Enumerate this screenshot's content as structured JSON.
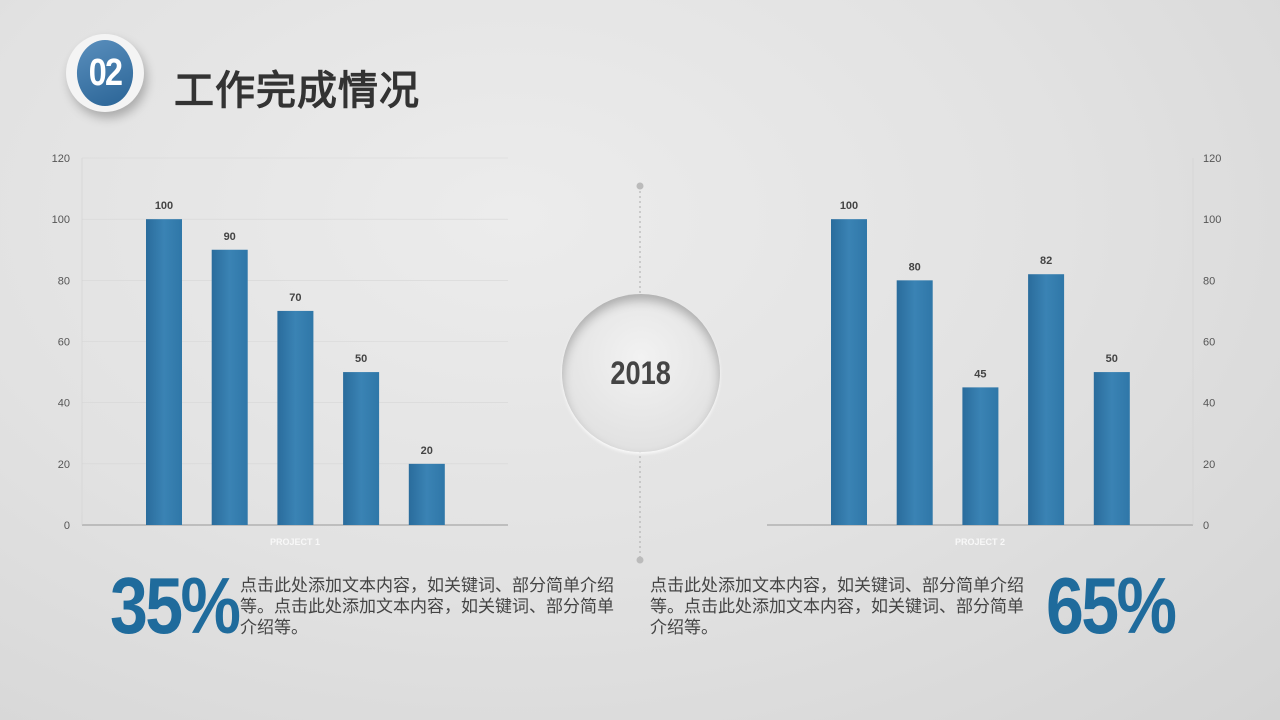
{
  "header": {
    "badge": "02",
    "title": "工作完成情况"
  },
  "year": "2018",
  "colors": {
    "bar": "#2f78a8",
    "bar_light": "#4b8fbd",
    "accent": "#1f6b9c"
  },
  "chart_data": [
    {
      "type": "bar",
      "categories": [
        "",
        "",
        "",
        "",
        ""
      ],
      "values": [
        100,
        90,
        70,
        50,
        20
      ],
      "xlabel": "PROJECT 1",
      "ylim": [
        0,
        120
      ],
      "yticks": [
        "0",
        "20",
        "40",
        "60",
        "80",
        "100",
        "120"
      ],
      "axis_side": "left",
      "grid": true
    },
    {
      "type": "bar",
      "categories": [
        "",
        "",
        "",
        "",
        ""
      ],
      "values": [
        100,
        80,
        45,
        82,
        50
      ],
      "xlabel": "PROJECT 2",
      "ylim": [
        0,
        120
      ],
      "yticks": [
        "0",
        "20",
        "40",
        "60",
        "80",
        "100",
        "120"
      ],
      "axis_side": "right",
      "grid": false
    }
  ],
  "stats": [
    {
      "value": "35%",
      "text": "点击此处添加文本内容，如关键词、部分简单介绍等。点击此处添加文本内容，如关键词、部分简单介绍等。"
    },
    {
      "value": "65%",
      "text": "点击此处添加文本内容，如关键词、部分简单介绍等。点击此处添加文本内容，如关键词、部分简单介绍等。"
    }
  ]
}
